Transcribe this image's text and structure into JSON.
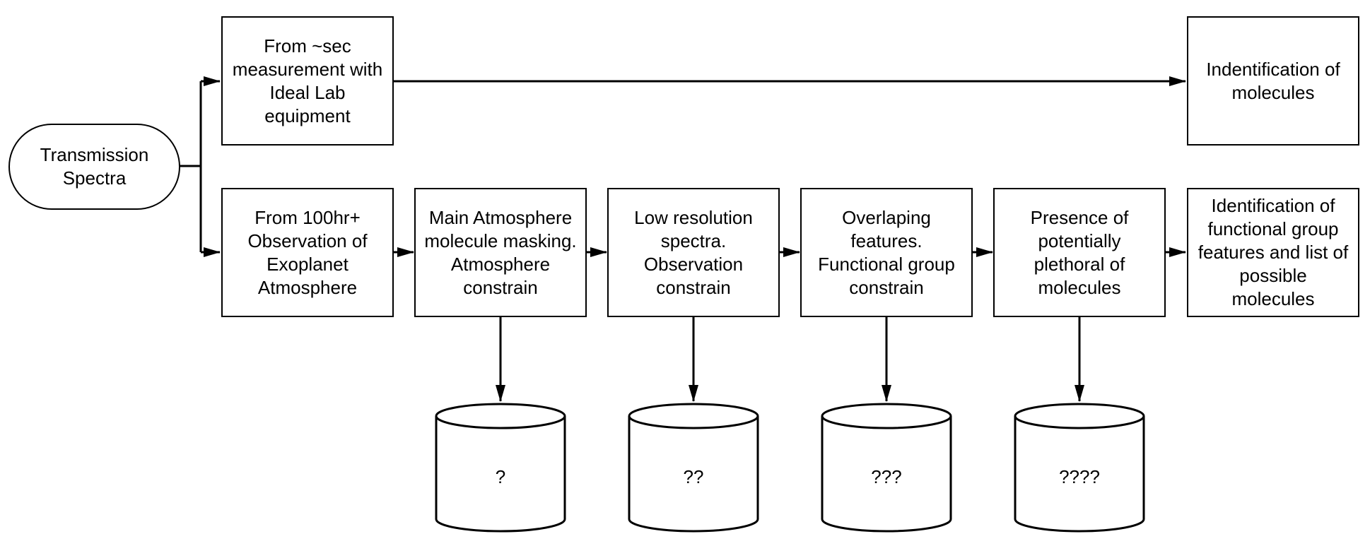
{
  "diagram": {
    "start": {
      "label": "Transmission\nSpectra"
    },
    "lab_path": {
      "source": "From ~sec\nmeasurement with\nIdeal Lab\nequipment",
      "result": "Indentification of\nmolecules"
    },
    "observation_path": {
      "steps": [
        {
          "label": "From 100hr+\nObservation of\nExoplanet\nAtmosphere"
        },
        {
          "label": "Main Atmosphere\nmolecule masking.\nAtmosphere\nconstrain"
        },
        {
          "label": "Low resolution\nspectra.\nObservation\nconstrain"
        },
        {
          "label": "Overlaping\nfeatures.\nFunctional group\nconstrain"
        },
        {
          "label": "Presence of\npotentially\nplethoral of\nmolecules"
        },
        {
          "label": "Identification of\nfunctional group\nfeatures and list of\npossible\nmolecules"
        }
      ]
    },
    "stores": [
      {
        "label": "?"
      },
      {
        "label": "??"
      },
      {
        "label": "???"
      },
      {
        "label": "????"
      }
    ],
    "colors": {
      "stroke": "#000000",
      "fill": "#ffffff",
      "text": "#000000"
    }
  }
}
